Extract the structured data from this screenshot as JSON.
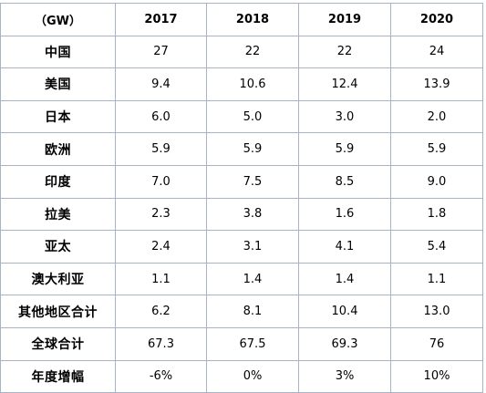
{
  "table": {
    "headers": [
      "（GW）",
      "2017",
      "2018",
      "2019",
      "2020"
    ],
    "rows": [
      {
        "label": "中国",
        "values": [
          "27",
          "22",
          "22",
          "24"
        ]
      },
      {
        "label": "美国",
        "values": [
          "9.4",
          "10.6",
          "12.4",
          "13.9"
        ]
      },
      {
        "label": "日本",
        "values": [
          "6.0",
          "5.0",
          "3.0",
          "2.0"
        ]
      },
      {
        "label": "欧洲",
        "values": [
          "5.9",
          "5.9",
          "5.9",
          "5.9"
        ]
      },
      {
        "label": "印度",
        "values": [
          "7.0",
          "7.5",
          "8.5",
          "9.0"
        ]
      },
      {
        "label": "拉美",
        "values": [
          "2.3",
          "3.8",
          "1.6",
          "1.8"
        ]
      },
      {
        "label": "亚太",
        "values": [
          "2.4",
          "3.1",
          "4.1",
          "5.4"
        ]
      },
      {
        "label": "澳大利亚",
        "values": [
          "1.1",
          "1.4",
          "1.4",
          "1.1"
        ]
      },
      {
        "label": "其他地区合计",
        "values": [
          "6.2",
          "8.1",
          "10.4",
          "13.0"
        ]
      },
      {
        "label": "全球合计",
        "values": [
          "67.3",
          "67.5",
          "69.3",
          "76"
        ]
      },
      {
        "label": "年度增幅",
        "values": [
          "-6%",
          "0%",
          "3%",
          "10%"
        ]
      }
    ]
  },
  "colors": {
    "border": "#a9b4c2",
    "text": "#000000",
    "background": "#ffffff"
  }
}
